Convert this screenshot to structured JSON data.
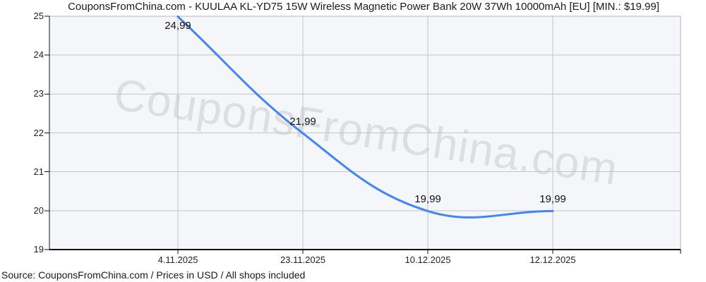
{
  "page": {
    "title": "CouponsFromChina.com - KUULAA KL-YD75 15W Wireless Magnetic Power Bank 20W 37Wh 10000mAh [EU] [MIN.: $19.99]",
    "watermark": "CouponsFromChina.com",
    "footer": "Source: CouponsFromChina.com / Prices in USD / All shops included"
  },
  "colors": {
    "line": "#4285f4",
    "grid": "#c4c4c4",
    "border": "#b5b5b5",
    "axis": "#111111",
    "plot_bg": "#f5f6fa",
    "watermark": "#c7c7cb",
    "text": "#1a1a1a"
  },
  "chart_data": {
    "type": "line",
    "title": "CouponsFromChina.com - KUULAA KL-YD75 15W Wireless Magnetic Power Bank 20W 37Wh 10000mAh [EU] [MIN.: $19.99]",
    "x": [
      "4.11.2025",
      "23.11.2025",
      "10.12.2025",
      "12.12.2025"
    ],
    "values": [
      24.99,
      21.99,
      19.99,
      19.99
    ],
    "point_labels": [
      "24,99",
      "21,99",
      "19,99",
      "19,99"
    ],
    "ylim": [
      19,
      25
    ],
    "yticks": [
      25,
      24,
      23,
      22,
      21,
      20,
      19
    ],
    "xlabel": "",
    "ylabel": "",
    "grid": true,
    "legend": "none",
    "currency": "USD",
    "line_style": "smooth",
    "min_price_note": "$19.99"
  }
}
